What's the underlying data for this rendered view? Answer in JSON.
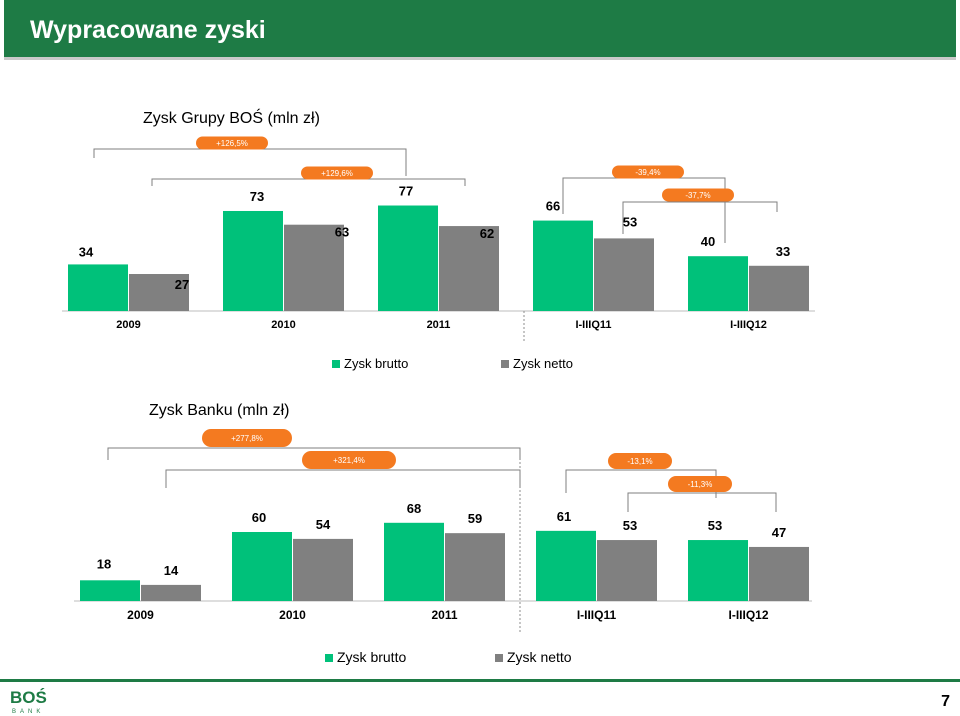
{
  "header": {
    "title": "Wypracowane zyski"
  },
  "colors": {
    "brutto": "#00c17a",
    "netto": "#808080",
    "header": "#1e7b45",
    "badge": "#f47a20",
    "bracket": "#7f7f7f"
  },
  "legend": {
    "brutto": "Zysk brutto",
    "netto": "Zysk netto"
  },
  "footer": {
    "page_number": "7",
    "logo_text": "BOŚ",
    "logo_sub": "BANK"
  },
  "chart_data": [
    {
      "type": "bar",
      "title": "Zysk Grupy BOŚ (mln zł)",
      "categories": [
        "2009",
        "2010",
        "2011",
        "I-IIIQ11",
        "I-IIIQ12"
      ],
      "series": [
        {
          "name": "Zysk brutto",
          "values": [
            34,
            73,
            77,
            66,
            40
          ]
        },
        {
          "name": "Zysk netto",
          "values": [
            27,
            63,
            62,
            53,
            33
          ]
        }
      ],
      "annotations": [
        "+126,5%",
        "+129,6%",
        "-39,4%",
        "-37,7%"
      ]
    },
    {
      "type": "bar",
      "title": "Zysk Banku (mln zł)",
      "categories": [
        "2009",
        "2010",
        "2011",
        "I-IIIQ11",
        "I-IIIQ12"
      ],
      "series": [
        {
          "name": "Zysk brutto",
          "values": [
            18,
            60,
            68,
            61,
            53
          ]
        },
        {
          "name": "Zysk netto",
          "values": [
            14,
            54,
            59,
            53,
            47
          ]
        }
      ],
      "annotations": [
        "+277,8%",
        "+321,4%",
        "-13,1%",
        "-11,3%"
      ]
    }
  ]
}
